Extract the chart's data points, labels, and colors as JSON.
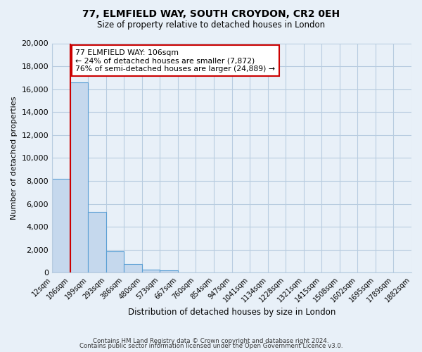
{
  "title": "77, ELMFIELD WAY, SOUTH CROYDON, CR2 0EH",
  "subtitle": "Size of property relative to detached houses in London",
  "xlabel": "Distribution of detached houses by size in London",
  "ylabel": "Number of detached properties",
  "bin_labels": [
    "12sqm",
    "106sqm",
    "199sqm",
    "293sqm",
    "386sqm",
    "480sqm",
    "573sqm",
    "667sqm",
    "760sqm",
    "854sqm",
    "947sqm",
    "1041sqm",
    "1134sqm",
    "1228sqm",
    "1321sqm",
    "1415sqm",
    "1508sqm",
    "1602sqm",
    "1695sqm",
    "1789sqm",
    "1882sqm"
  ],
  "bar_values": [
    8200,
    16600,
    5300,
    1850,
    750,
    280,
    230,
    0,
    0,
    0,
    0,
    0,
    0,
    0,
    0,
    0,
    0,
    0,
    0,
    0
  ],
  "bar_color": "#c5d8ed",
  "bar_edge_color": "#5a9fd4",
  "red_line_x": 1,
  "annotation_title": "77 ELMFIELD WAY: 106sqm",
  "annotation_line1": "← 24% of detached houses are smaller (7,872)",
  "annotation_line2": "76% of semi-detached houses are larger (24,889) →",
  "annotation_box_color": "#ffffff",
  "annotation_box_edge": "#cc0000",
  "ylim": [
    0,
    20000
  ],
  "yticks": [
    0,
    2000,
    4000,
    6000,
    8000,
    10000,
    12000,
    14000,
    16000,
    18000,
    20000
  ],
  "footer_line1": "Contains HM Land Registry data © Crown copyright and database right 2024.",
  "footer_line2": "Contains public sector information licensed under the Open Government Licence v3.0.",
  "bg_color": "#e8f0f8",
  "plot_bg_color": "#e8f0f8",
  "grid_color": "#b8cce0"
}
